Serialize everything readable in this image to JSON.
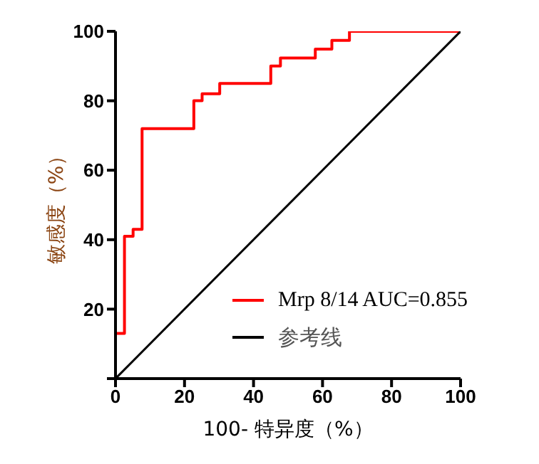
{
  "chart_data": {
    "type": "step",
    "xlabel": "100- 特异度（%）",
    "ylabel": "敏感度（%）",
    "xlim": [
      0,
      100
    ],
    "ylim": [
      0,
      100
    ],
    "xticks": [
      0,
      20,
      40,
      60,
      80,
      100
    ],
    "yticks": [
      {
        "value": 0,
        "label": null
      },
      20,
      40,
      60,
      80,
      100
    ],
    "legend": "bottom right",
    "series": [
      {
        "name": "Mrp 8/14   AUC=0.855",
        "color": "#ff0000",
        "x": [
          0,
          0,
          2.6,
          5.1,
          7.7,
          22.7,
          25.1,
          30.2,
          45,
          47.8,
          57.9,
          62.7,
          67.8,
          100
        ],
        "values": [
          0,
          13,
          41,
          43,
          72,
          80,
          82,
          85,
          90,
          92.3,
          94.9,
          97.4,
          100,
          100
        ]
      },
      {
        "name": "参考线",
        "color": "#000000",
        "type": "line",
        "x": [
          0,
          100
        ],
        "values": [
          0,
          100
        ]
      }
    ]
  }
}
